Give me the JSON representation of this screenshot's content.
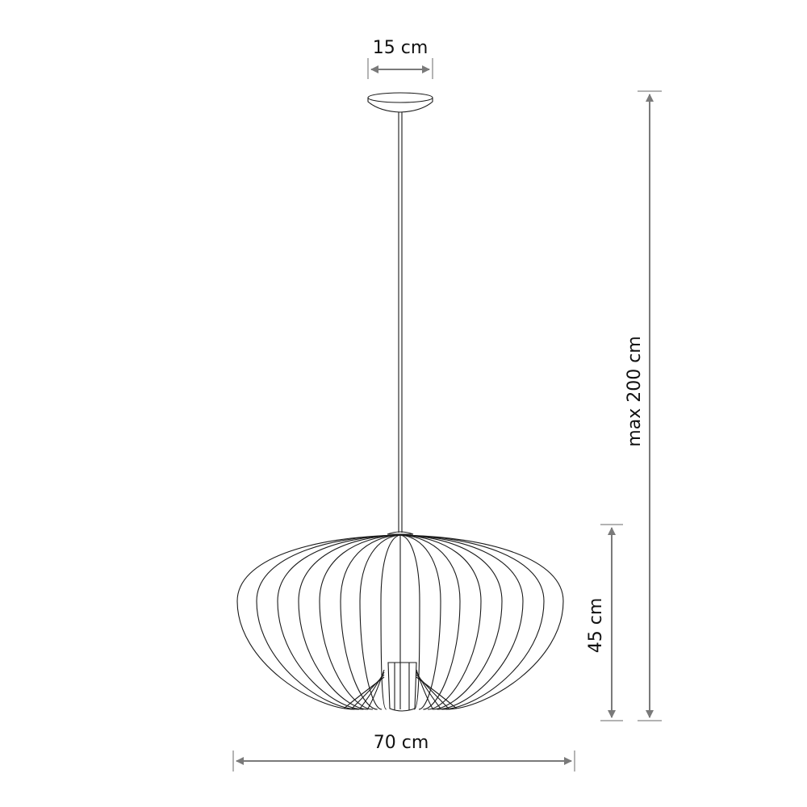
{
  "dimensions": {
    "canopy_width": "15 cm",
    "max_height": "max 200 cm",
    "shade_height": "45 cm",
    "shade_width": "70 cm"
  },
  "colors": {
    "dimension_line": "#7a7a7a",
    "drawing_ink": "#1a1a1a",
    "background": "#ffffff"
  }
}
